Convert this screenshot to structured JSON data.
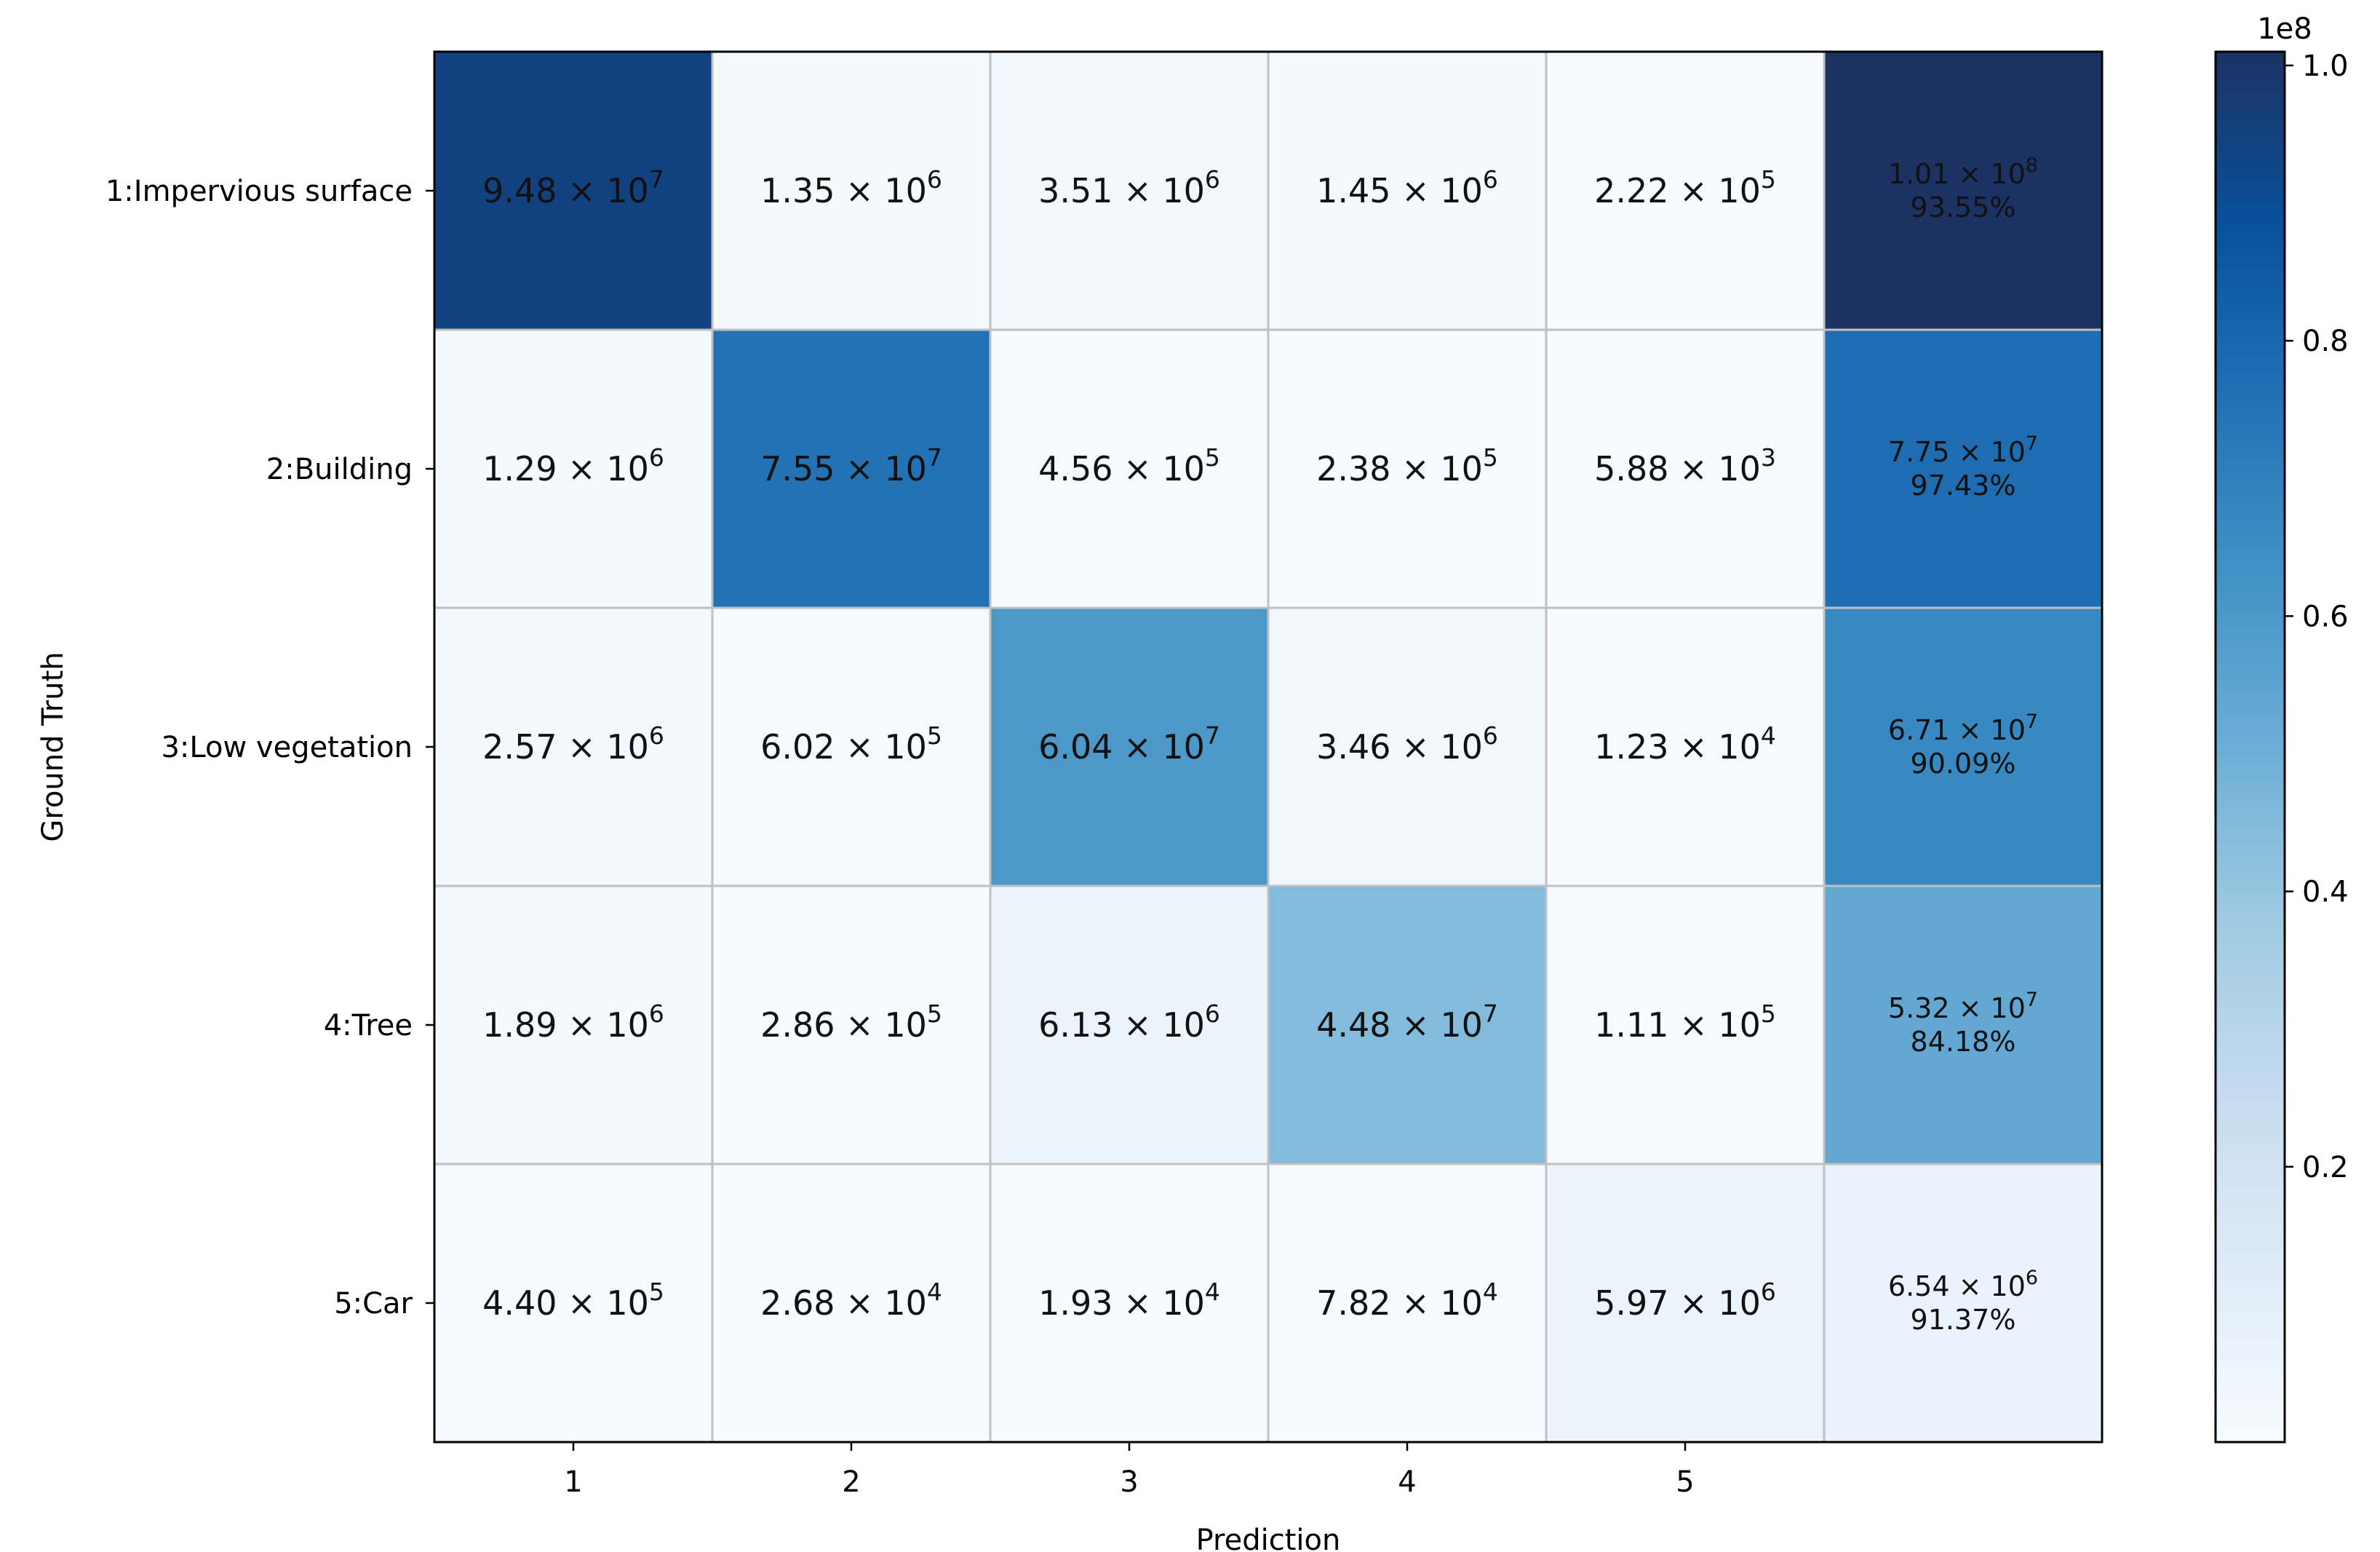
{
  "chart_data": {
    "type": "heatmap",
    "title": "",
    "xlabel": "Prediction",
    "ylabel": "Ground Truth",
    "row_labels": [
      "1:Impervious surface",
      "2:Building",
      "3:Low vegetation",
      "4:Tree",
      "5:Car"
    ],
    "col_labels": [
      "1",
      "2",
      "3",
      "4",
      "5"
    ],
    "values": [
      [
        94800000,
        1350000,
        3510000,
        1450000,
        222000
      ],
      [
        1290000,
        75500000,
        456000,
        238000,
        5880
      ],
      [
        2570000,
        602000,
        60400000,
        3460000,
        12300
      ],
      [
        1890000,
        286000,
        6130000,
        44800000,
        111000
      ],
      [
        440000,
        26800,
        19300,
        78200,
        5970000
      ]
    ],
    "cell_labels": [
      [
        [
          "9.48",
          "7"
        ],
        [
          "1.35",
          "6"
        ],
        [
          "3.51",
          "6"
        ],
        [
          "1.45",
          "6"
        ],
        [
          "2.22",
          "5"
        ]
      ],
      [
        [
          "1.29",
          "6"
        ],
        [
          "7.55",
          "7"
        ],
        [
          "4.56",
          "5"
        ],
        [
          "2.38",
          "5"
        ],
        [
          "5.88",
          "3"
        ]
      ],
      [
        [
          "2.57",
          "6"
        ],
        [
          "6.02",
          "5"
        ],
        [
          "6.04",
          "7"
        ],
        [
          "3.46",
          "6"
        ],
        [
          "1.23",
          "4"
        ]
      ],
      [
        [
          "1.89",
          "6"
        ],
        [
          "2.86",
          "5"
        ],
        [
          "6.13",
          "6"
        ],
        [
          "4.48",
          "7"
        ],
        [
          "1.11",
          "5"
        ]
      ],
      [
        [
          "4.40",
          "5"
        ],
        [
          "2.68",
          "4"
        ],
        [
          "1.93",
          "4"
        ],
        [
          "7.82",
          "4"
        ],
        [
          "5.97",
          "6"
        ]
      ]
    ],
    "row_totals": [
      101000000,
      77500000,
      67100000,
      53200000,
      6540000
    ],
    "row_total_labels": [
      [
        "1.01",
        "8"
      ],
      [
        "7.75",
        "7"
      ],
      [
        "6.71",
        "7"
      ],
      [
        "5.32",
        "7"
      ],
      [
        "6.54",
        "6"
      ]
    ],
    "row_recall": [
      "93.55%",
      "97.43%",
      "90.09%",
      "84.18%",
      "91.37%"
    ],
    "times_symbol": "×",
    "base": "10",
    "colormap": "Blues",
    "colorbar": {
      "range": [
        0,
        101000000
      ],
      "ticks": [
        20000000,
        40000000,
        60000000,
        80000000,
        100000000
      ],
      "tick_labels": [
        "0.2",
        "0.4",
        "0.6",
        "0.8",
        "1.0"
      ],
      "offset_label": "1e8"
    },
    "grid": true
  }
}
